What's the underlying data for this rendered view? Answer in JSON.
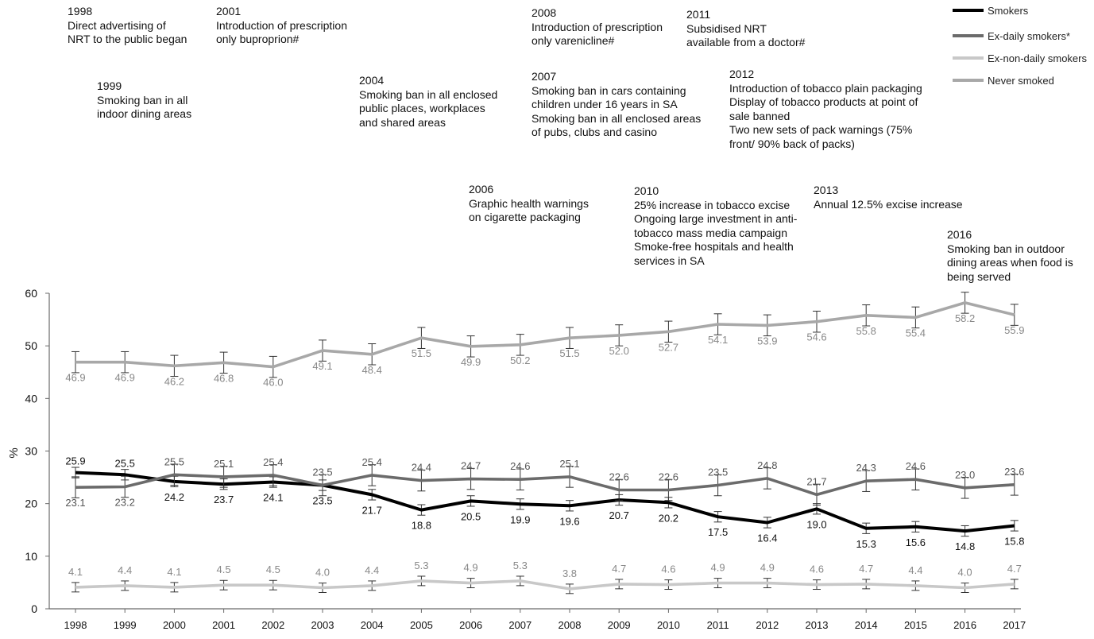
{
  "chart_data": {
    "type": "line",
    "ylabel": "%",
    "ylim": [
      0,
      60
    ],
    "yticks": [
      "0",
      "10",
      "20",
      "30",
      "40",
      "50",
      "60"
    ],
    "grid": false,
    "legend_position": "top-right",
    "categories": [
      "1998",
      "1999",
      "2000",
      "2001",
      "2002",
      "2003",
      "2004",
      "2005",
      "2006",
      "2007",
      "2008",
      "2009",
      "2010",
      "2011",
      "2012",
      "2013",
      "2014",
      "2015",
      "2016",
      "2017"
    ],
    "series": [
      {
        "name": "Smokers",
        "color": "#000000",
        "values": [
          25.9,
          25.5,
          24.2,
          23.7,
          24.1,
          23.5,
          21.7,
          18.8,
          20.5,
          19.9,
          19.6,
          20.7,
          20.2,
          17.5,
          16.4,
          19.0,
          15.3,
          15.6,
          14.8,
          15.8
        ],
        "labels": [
          "25.9",
          "25.5",
          "24.2",
          "23.7",
          "24.1",
          "23.5",
          "21.7",
          "18.8",
          "20.5",
          "19.9",
          "19.6",
          "20.7",
          "20.2",
          "17.5",
          "16.4",
          "19.0",
          "15.3",
          "15.6",
          "14.8",
          "15.8"
        ]
      },
      {
        "name": "Ex-daily smokers*",
        "color": "#6b6b6b",
        "values": [
          23.1,
          23.2,
          25.5,
          25.1,
          25.4,
          23.5,
          25.4,
          24.4,
          24.7,
          24.6,
          25.1,
          22.6,
          22.6,
          23.5,
          24.8,
          21.7,
          24.3,
          24.6,
          23.0,
          23.6
        ],
        "labels": [
          "23.1",
          "23.2",
          "25.5",
          "25.1",
          "25.4",
          "23.5",
          "25.4",
          "24.4",
          "24.7",
          "24.6",
          "25.1",
          "22.6",
          "22.6",
          "23.5",
          "24.8",
          "21.7",
          "24.3",
          "24.6",
          "23.0",
          "23.6"
        ]
      },
      {
        "name": "Ex-non-daily smokers",
        "color": "#c8c8c8",
        "values": [
          4.1,
          4.4,
          4.1,
          4.5,
          4.5,
          4.0,
          4.4,
          5.3,
          4.9,
          5.3,
          3.8,
          4.7,
          4.6,
          4.9,
          4.9,
          4.6,
          4.7,
          4.4,
          4.0,
          4.7
        ],
        "labels": [
          "4.1",
          "4.4",
          "4.1",
          "4.5",
          "4.5",
          "4.0",
          "4.4",
          "5.3",
          "4.9",
          "5.3",
          "3.8",
          "4.7",
          "4.6",
          "4.9",
          "4.9",
          "4.6",
          "4.7",
          "4.4",
          "4.0",
          "4.7"
        ]
      },
      {
        "name": "Never smoked",
        "color": "#a8a8a8",
        "values": [
          46.9,
          46.9,
          46.2,
          46.8,
          46.0,
          49.1,
          48.4,
          51.5,
          49.9,
          50.2,
          51.5,
          52.0,
          52.7,
          54.1,
          53.9,
          54.6,
          55.8,
          55.4,
          58.2,
          55.9
        ],
        "labels": [
          "46.9",
          "46.9",
          "46.2",
          "46.8",
          "46.0",
          "49.1",
          "48.4",
          "51.5",
          "49.9",
          "50.2",
          "51.5",
          "52.0",
          "52.7",
          "54.1",
          "53.9",
          "54.6",
          "55.8",
          "55.4",
          "58.2",
          "55.9"
        ]
      }
    ],
    "annotations": [
      {
        "year": "1998",
        "lines": [
          "Direct advertising of",
          "NRT to the public began"
        ]
      },
      {
        "year": "1999",
        "lines": [
          "Smoking  ban in all",
          "indoor dining  areas"
        ]
      },
      {
        "year": "2001",
        "lines": [
          "Introduction  of prescription",
          "only buproprion#"
        ]
      },
      {
        "year": "2004",
        "lines": [
          "Smoking  ban in all enclosed",
          "public places, workplaces",
          "and shared areas"
        ]
      },
      {
        "year": "2006",
        "lines": [
          "Graphic health warnings",
          "on cigarette packaging"
        ]
      },
      {
        "year": "2008",
        "lines": [
          "Introduction  of prescription",
          "only varenicline#"
        ]
      },
      {
        "year": "2007",
        "lines": [
          "Smoking  ban in cars containing",
          "children under 16 years in SA",
          "Smoking  ban in all enclosed areas",
          "of pubs, clubs and casino"
        ]
      },
      {
        "year": "2010",
        "lines": [
          "25% increase in tobacco excise",
          "Ongoing large investment  in anti-",
          "tobacco mass media campaign",
          "Smoke-free hospitals and health",
          "services in SA"
        ]
      },
      {
        "year": "2011",
        "lines": [
          "Subsidised NRT",
          "available from a doctor#"
        ]
      },
      {
        "year": "2012",
        "lines": [
          "Introduction of tobacco  plain packaging",
          "Display of tobacco products  at point of",
          "sale banned",
          "Two new sets of pack warnings (75%",
          "front/  90% back of packs)"
        ]
      },
      {
        "year": "2013",
        "lines": [
          "Annual 12.5% excise increase"
        ]
      },
      {
        "year": "2016",
        "lines": [
          "Smoking  ban in outdoor",
          "dining areas when food is",
          "being served"
        ]
      }
    ]
  }
}
